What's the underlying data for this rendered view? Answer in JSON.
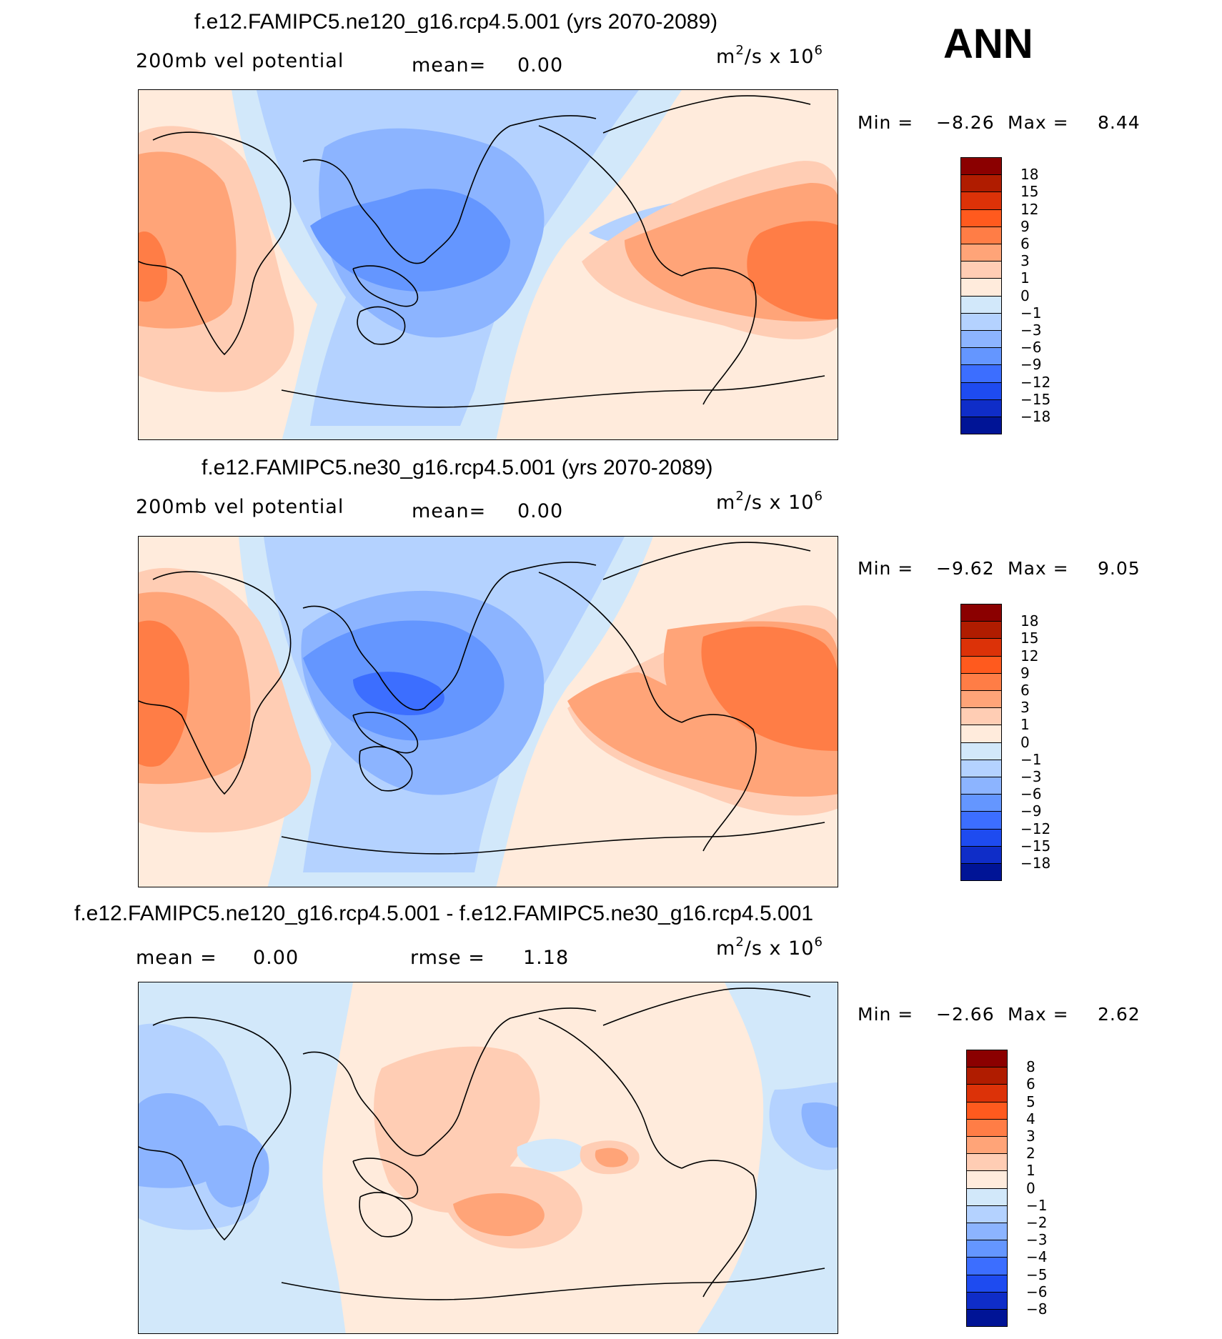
{
  "season": "ANN",
  "panels": [
    {
      "title": "f.e12.FAMIPC5.ne120_g16.rcp4.5.001 (yrs 2070-2089)",
      "left_label": "200mb vel potential",
      "center_label": "mean=",
      "center_value": "0.00",
      "units": {
        "base": "m",
        "exp1": "2",
        "mid": "/s x 10",
        "exp2": "6"
      },
      "min_label": "Min =",
      "min_value": "−8.26",
      "max_label": "Max =",
      "max_value": "8.44",
      "colorbar": {
        "colors": [
          "#8b0000",
          "#b01c00",
          "#dc3208",
          "#ff5a1e",
          "#ff7d46",
          "#ffa478",
          "#ffcdb4",
          "#ffebdc",
          "#d2e8fa",
          "#b4d2ff",
          "#8cb4ff",
          "#6496ff",
          "#3c6eff",
          "#1e4bf0",
          "#0f2dc8",
          "#001496"
        ],
        "labels": [
          "18",
          "15",
          "12",
          "9",
          "6",
          "3",
          "1",
          "0",
          "−1",
          "−3",
          "−6",
          "−9",
          "−12",
          "−15",
          "−18"
        ]
      }
    },
    {
      "title": "f.e12.FAMIPC5.ne30_g16.rcp4.5.001 (yrs 2070-2089)",
      "left_label": "200mb vel potential",
      "center_label": "mean=",
      "center_value": "0.00",
      "units": {
        "base": "m",
        "exp1": "2",
        "mid": "/s x 10",
        "exp2": "6"
      },
      "min_label": "Min =",
      "min_value": "−9.62",
      "max_label": "Max =",
      "max_value": "9.05",
      "colorbar": {
        "colors": [
          "#8b0000",
          "#b01c00",
          "#dc3208",
          "#ff5a1e",
          "#ff7d46",
          "#ffa478",
          "#ffcdb4",
          "#ffebdc",
          "#d2e8fa",
          "#b4d2ff",
          "#8cb4ff",
          "#6496ff",
          "#3c6eff",
          "#1e4bf0",
          "#0f2dc8",
          "#001496"
        ],
        "labels": [
          "18",
          "15",
          "12",
          "9",
          "6",
          "3",
          "1",
          "0",
          "−1",
          "−3",
          "−6",
          "−9",
          "−12",
          "−15",
          "−18"
        ]
      }
    },
    {
      "title": "f.e12.FAMIPC5.ne120_g16.rcp4.5.001 - f.e12.FAMIPC5.ne30_g16.rcp4.5.001",
      "left_label": "mean =",
      "left_value": "0.00",
      "center_label": "rmse =",
      "center_value": "1.18",
      "units": {
        "base": "m",
        "exp1": "2",
        "mid": "/s x 10",
        "exp2": "6"
      },
      "min_label": "Min =",
      "min_value": "−2.66",
      "max_label": "Max =",
      "max_value": "2.62",
      "colorbar": {
        "colors": [
          "#8b0000",
          "#b01c00",
          "#dc3208",
          "#ff5a1e",
          "#ff7d46",
          "#ffa478",
          "#ffcdb4",
          "#ffebdc",
          "#d2e8fa",
          "#b4d2ff",
          "#8cb4ff",
          "#6496ff",
          "#3c6eff",
          "#1e4bf0",
          "#0f2dc8",
          "#001496"
        ],
        "labels": [
          "8",
          "6",
          "5",
          "4",
          "3",
          "2",
          "1",
          "0",
          "−1",
          "−2",
          "−3",
          "−4",
          "−5",
          "−6",
          "−8"
        ]
      }
    }
  ],
  "colors": {
    "neg1": "#d2e8fa",
    "neg3": "#b4d2ff",
    "neg6": "#8cb4ff",
    "neg9": "#6496ff",
    "neg12": "#3c6eff",
    "neg15": "#1e4bf0",
    "pos0": "#ffebdc",
    "pos1": "#ffcdb4",
    "pos3": "#ffa478",
    "pos6": "#ff7d46",
    "pos9": "#ff5a1e"
  }
}
